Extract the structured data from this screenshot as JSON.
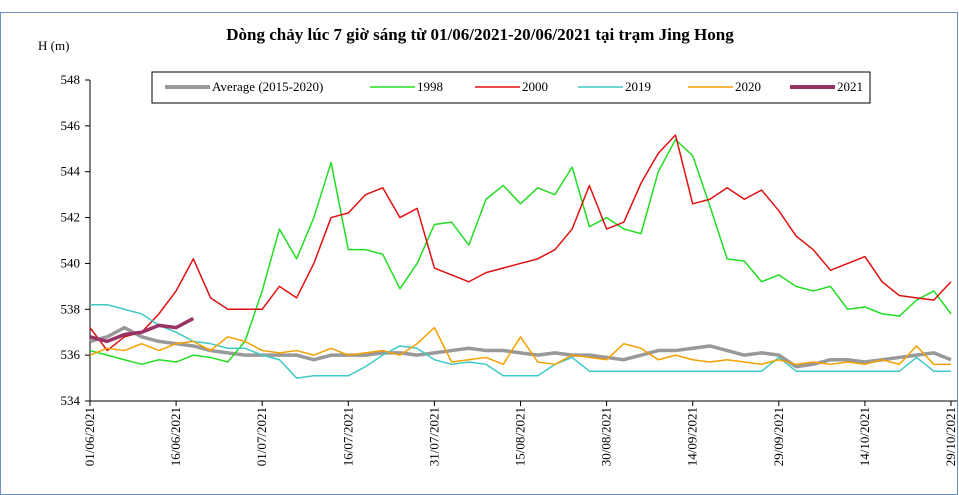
{
  "chart_data": {
    "type": "line",
    "title": "Dòng chảy lúc 7 giờ sáng từ 01/06/2021-20/06/2021 tại trạm Jing Hong",
    "y_label": "H (m)",
    "x": [
      0,
      3,
      6,
      9,
      12,
      15,
      18,
      21,
      24,
      27,
      30,
      33,
      36,
      39,
      42,
      45,
      48,
      51,
      54,
      57,
      60,
      63,
      66,
      69,
      72,
      75,
      78,
      81,
      84,
      87,
      90,
      93,
      96,
      99,
      102,
      105,
      108,
      111,
      114,
      117,
      120,
      123,
      126,
      129,
      132,
      135,
      138,
      141,
      144,
      147,
      150
    ],
    "xlim": [
      0,
      150
    ],
    "xticks": [
      {
        "value": 0,
        "label": "01/06/2021"
      },
      {
        "value": 15,
        "label": "16/06/2021"
      },
      {
        "value": 30,
        "label": "01/07/2021"
      },
      {
        "value": 45,
        "label": "16/07/2021"
      },
      {
        "value": 60,
        "label": "31/07/2021"
      },
      {
        "value": 75,
        "label": "15/08/2021"
      },
      {
        "value": 90,
        "label": "30/08/2021"
      },
      {
        "value": 105,
        "label": "14/09/2021"
      },
      {
        "value": 120,
        "label": "29/09/2021"
      },
      {
        "value": 135,
        "label": "14/10/2021"
      },
      {
        "value": 150,
        "label": "29/10/2021"
      }
    ],
    "ylim": [
      534,
      548
    ],
    "yticks": [
      534,
      536,
      538,
      540,
      542,
      544,
      546,
      548
    ],
    "series": [
      {
        "name": "Average (2015-2020)",
        "color": "#999999",
        "values": [
          536.6,
          536.8,
          537.2,
          536.8,
          536.6,
          536.5,
          536.4,
          536.2,
          536.1,
          536.0,
          536.0,
          536.0,
          536.0,
          535.8,
          536.0,
          536.0,
          536.0,
          536.1,
          536.1,
          536.0,
          536.1,
          536.2,
          536.3,
          536.2,
          536.2,
          536.1,
          536.0,
          536.1,
          536.0,
          536.0,
          535.9,
          535.8,
          536.0,
          536.2,
          536.2,
          536.3,
          536.4,
          536.2,
          536.0,
          536.1,
          536.0,
          535.5,
          535.6,
          535.8,
          535.8,
          535.7,
          535.8,
          535.9,
          536.0,
          536.1,
          535.8
        ]
      },
      {
        "name": "1998",
        "color": "#22dd22",
        "values": [
          536.2,
          536.0,
          535.8,
          535.6,
          535.8,
          535.7,
          536.0,
          535.9,
          535.7,
          536.6,
          538.8,
          541.5,
          540.2,
          542.0,
          544.4,
          540.6,
          540.6,
          540.4,
          538.9,
          540.0,
          541.7,
          541.8,
          540.8,
          542.8,
          543.4,
          542.6,
          543.3,
          543.0,
          544.2,
          541.6,
          542.0,
          541.5,
          541.3,
          544.0,
          545.4,
          544.7,
          542.5,
          540.2,
          540.1,
          539.2,
          539.5,
          539.0,
          538.8,
          539.0,
          538.0,
          538.1,
          537.8,
          537.7,
          538.4,
          538.8,
          537.8
        ]
      },
      {
        "name": "2000",
        "color": "#e01010",
        "values": [
          537.2,
          536.2,
          536.8,
          537.0,
          537.8,
          538.8,
          540.2,
          538.5,
          538.0,
          538.0,
          538.0,
          539.0,
          538.5,
          540.0,
          542.0,
          542.2,
          543.0,
          543.3,
          542.0,
          542.4,
          539.8,
          539.5,
          539.2,
          539.6,
          539.8,
          540.0,
          540.2,
          540.6,
          541.5,
          543.4,
          541.5,
          541.8,
          543.5,
          544.8,
          545.6,
          542.6,
          542.8,
          543.3,
          542.8,
          543.2,
          542.3,
          541.2,
          540.6,
          539.7,
          540.0,
          540.3,
          539.2,
          538.6,
          538.5,
          538.4,
          539.2
        ]
      },
      {
        "name": "2019",
        "color": "#40c8c8",
        "values": [
          538.2,
          538.2,
          538.0,
          537.8,
          537.3,
          537.0,
          536.6,
          536.5,
          536.3,
          536.3,
          536.0,
          535.8,
          535.0,
          535.1,
          535.1,
          535.1,
          535.5,
          536.0,
          536.4,
          536.3,
          535.8,
          535.6,
          535.7,
          535.6,
          535.1,
          535.1,
          535.1,
          535.6,
          535.9,
          535.3,
          535.3,
          535.3,
          535.3,
          535.3,
          535.3,
          535.3,
          535.3,
          535.3,
          535.3,
          535.3,
          535.9,
          535.3,
          535.3,
          535.3,
          535.3,
          535.3,
          535.3,
          535.3,
          535.9,
          535.3,
          535.3
        ]
      },
      {
        "name": "2020",
        "color": "#f5a000",
        "values": [
          536.0,
          536.3,
          536.2,
          536.5,
          536.2,
          536.5,
          536.6,
          536.2,
          536.8,
          536.6,
          536.2,
          536.1,
          536.2,
          536.0,
          536.3,
          536.0,
          536.1,
          536.2,
          536.0,
          536.5,
          537.2,
          535.7,
          535.8,
          535.9,
          535.6,
          536.8,
          535.7,
          535.6,
          536.0,
          535.9,
          535.8,
          536.5,
          536.3,
          535.8,
          536.0,
          535.8,
          535.7,
          535.8,
          535.7,
          535.6,
          535.8,
          535.6,
          535.7,
          535.6,
          535.7,
          535.6,
          535.8,
          535.6,
          536.4,
          535.6,
          535.6
        ]
      },
      {
        "name": "2021",
        "color": "#993366",
        "values": [
          536.8,
          536.6,
          536.9,
          537.0,
          537.3,
          537.2,
          537.6,
          null,
          null,
          null,
          null,
          null,
          null,
          null,
          null,
          null,
          null,
          null,
          null,
          null,
          null,
          null,
          null,
          null,
          null,
          null,
          null,
          null,
          null,
          null,
          null,
          null,
          null,
          null,
          null,
          null,
          null,
          null,
          null,
          null,
          null,
          null,
          null,
          null,
          null,
          null,
          null,
          null,
          null,
          null,
          null
        ]
      }
    ]
  }
}
